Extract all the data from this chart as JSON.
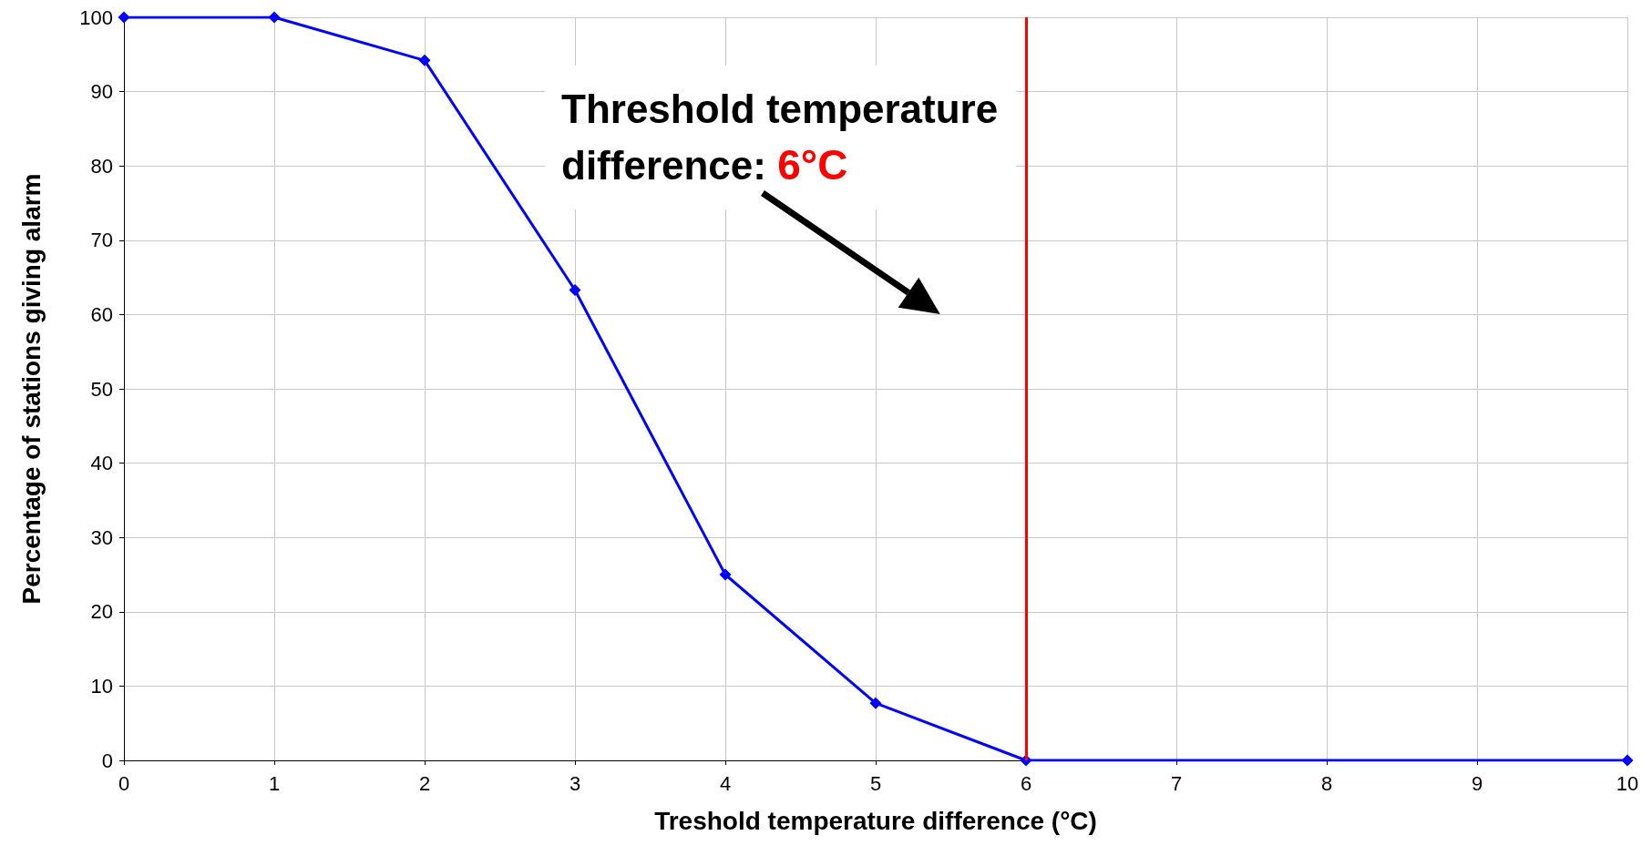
{
  "chart_data": {
    "type": "line",
    "xlabel": "Treshold temperature difference (°C)",
    "ylabel": "Percentage of stations giving alarm",
    "x": [
      0,
      1,
      2,
      3,
      4,
      5,
      6,
      10
    ],
    "series": [
      {
        "color": "#0000ff",
        "values": [
          100,
          100,
          94.2,
          63.3,
          25,
          7.7,
          0,
          0
        ]
      }
    ],
    "xlim": [
      0,
      10
    ],
    "xticks": [
      0,
      1,
      2,
      3,
      4,
      5,
      6,
      7,
      8,
      9,
      10
    ],
    "ylim": [
      0,
      100
    ],
    "yticks": [
      0,
      10,
      20,
      30,
      40,
      50,
      60,
      70,
      80,
      90,
      100
    ],
    "grid": true,
    "marker": "diamond",
    "line_style": "solid",
    "ref_lines": [
      {
        "axis": "x",
        "value": 6,
        "label": "Threshold temperature difference: 6°C",
        "color": "#ff0000"
      }
    ]
  }
}
